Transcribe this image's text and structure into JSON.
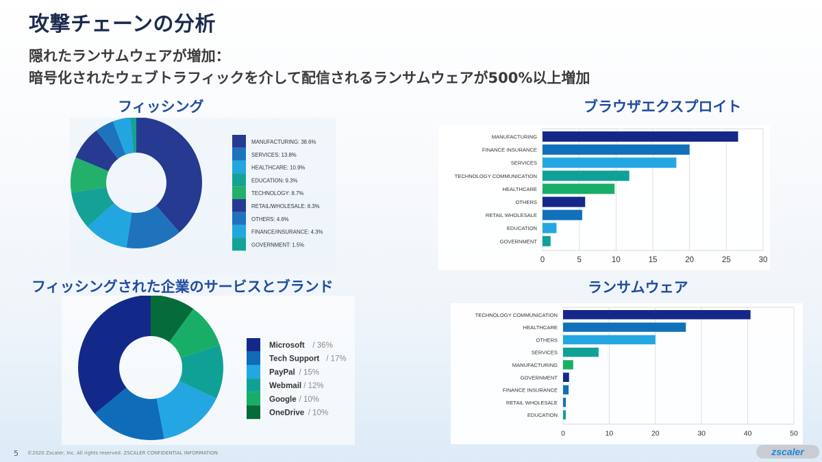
{
  "slide": {
    "title": "攻撃チェーンの分析",
    "subtitle_line1": "隠れたランサムウェアが増加：",
    "subtitle_line2": "暗号化されたウェブトラフィックを介して配信されるランサムウェアが500%以上増加",
    "page_number": "5",
    "copyright": "©2020 Zscaler, Inc. All rights reserved. ZSCALER CONFIDENTIAL INFORMATION",
    "logo_text": "zscaler"
  },
  "sections": {
    "phishing": "フィッシング",
    "browser_exploits": "ブラウザエクスプロイト",
    "phished_brands": "フィッシングされた企業のサービスとブランド",
    "ransomware": "ランサムウェア"
  },
  "chart_data": [
    {
      "type": "pie",
      "title": "フィッシング",
      "donut": true,
      "legend_position": "right",
      "categories": [
        "MANUFACTURING",
        "SERVICES",
        "HEALTHCARE",
        "EDUCATION",
        "TECHNOLOGY",
        "RETAIL/WHOLESALE",
        "OTHERS",
        "FINANCE/INSURANCE",
        "GOVERNMENT"
      ],
      "values": [
        38.6,
        13.8,
        10.9,
        9.3,
        8.7,
        8.3,
        4.6,
        4.3,
        1.5
      ],
      "legend_labels": [
        "MANUFACTURING: 38.6%",
        "SERVICES: 13.8%",
        "HEALTHCARE: 10.9%",
        "EDUCATION: 9.3%",
        "TECHNOLOGY: 8.7%",
        "RETAIL/WHOLESALE: 8.3%",
        "OTHERS: 4.6%",
        "FINANCE/INSURANCE: 4.3%",
        "GOVERNMENT: 1.5%"
      ],
      "colors": [
        "#263a91",
        "#1f73bd",
        "#22a6e0",
        "#15a195",
        "#23b06a",
        "#263a91",
        "#1f73bd",
        "#22a6e0",
        "#15a195"
      ],
      "direction": "clockwise"
    },
    {
      "type": "bar",
      "orientation": "horizontal",
      "title": "ブラウザエクスプロイト",
      "categories": [
        "MANUFACTURING",
        "FINANCE INSURANCE",
        "SERVICES",
        "TECHNOLOGY COMMUNICATION",
        "HEALTHCARE",
        "OTHERS",
        "RETAIL WHOLESALE",
        "EDUCATION",
        "GOVERNMENT"
      ],
      "values": [
        26.6,
        20.0,
        18.2,
        11.8,
        9.8,
        5.8,
        5.4,
        1.9,
        1.1
      ],
      "colors": [
        "#15288a",
        "#1170ba",
        "#24a6e2",
        "#10a196",
        "#19ae68",
        "#15288a",
        "#1170ba",
        "#24a6e2",
        "#10a196"
      ],
      "xlim": [
        0,
        30
      ],
      "xticks": [
        "0",
        "5",
        "10",
        "15",
        "20",
        "25",
        "30"
      ],
      "grid": true
    },
    {
      "type": "pie",
      "title": "フィッシングされた企業のサービスとブランド",
      "donut": true,
      "legend_position": "right",
      "categories": [
        "Microsoft",
        "Tech Support",
        "PayPal",
        "Webmail",
        "Google",
        "OneDrive"
      ],
      "values": [
        36,
        17,
        15,
        12,
        10,
        10
      ],
      "legend_names": [
        "Microsoft",
        "Tech Support",
        "PayPal",
        "Webmail",
        "Google",
        "OneDrive"
      ],
      "legend_values": [
        "/ 36%",
        "/ 17%",
        "/ 15%",
        "/ 12%",
        "/ 10%",
        "/ 10%"
      ],
      "colors": [
        "#13298a",
        "#0f6cb8",
        "#24a6e2",
        "#10a196",
        "#19ae68",
        "#056b3a"
      ],
      "direction": "counterclockwise"
    },
    {
      "type": "bar",
      "orientation": "horizontal",
      "title": "ランサムウェア",
      "categories": [
        "TECHNOLOGY COMMUNICATION",
        "HEALTHCARE",
        "OTHERS",
        "SERVICES",
        "MANUFACTURING",
        "GOVERNMENT",
        "FINANCE INSURANCE",
        "RETAIL WHOLESALE",
        "EDUCATION"
      ],
      "values": [
        40.6,
        26.6,
        20.0,
        7.7,
        2.2,
        1.3,
        1.2,
        0.6,
        0.6
      ],
      "colors": [
        "#15288a",
        "#1170ba",
        "#24a6e2",
        "#10a196",
        "#19ae68",
        "#15288a",
        "#1170ba",
        "#1170ba",
        "#10a196"
      ],
      "xlim": [
        0,
        50
      ],
      "xticks": [
        "0",
        "10",
        "20",
        "30",
        "40",
        "50"
      ],
      "grid": true
    }
  ]
}
